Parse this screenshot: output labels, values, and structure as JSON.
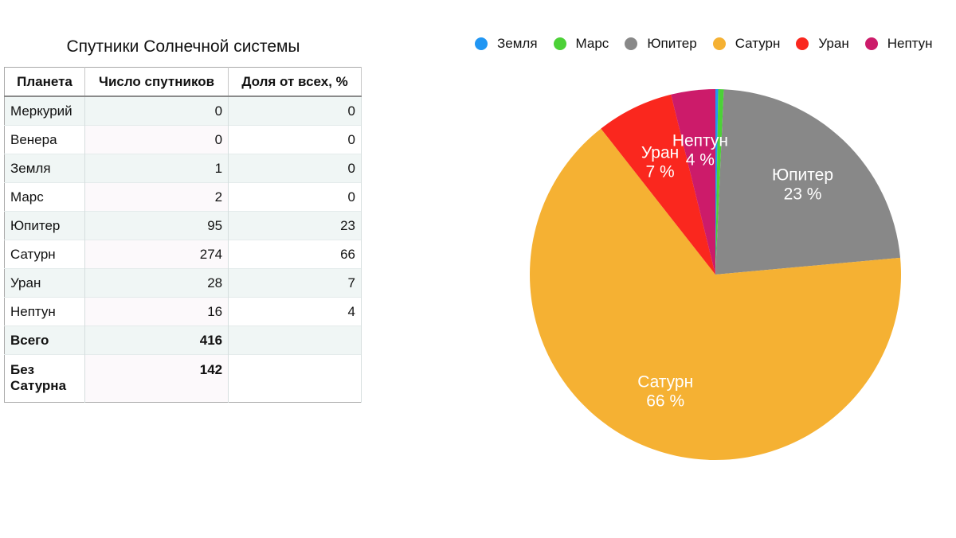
{
  "table": {
    "title": "Спутники Солнечной системы",
    "headers": [
      "Планета",
      "Число спутников",
      "Доля от всех, %"
    ],
    "rows": [
      {
        "planet": "Меркурий",
        "moons": "0",
        "share": "0"
      },
      {
        "planet": "Венера",
        "moons": "0",
        "share": "0"
      },
      {
        "planet": "Земля",
        "moons": "1",
        "share": "0"
      },
      {
        "planet": "Марс",
        "moons": "2",
        "share": "0"
      },
      {
        "planet": "Юпитер",
        "moons": "95",
        "share": "23"
      },
      {
        "planet": "Сатурн",
        "moons": "274",
        "share": "66"
      },
      {
        "planet": "Уран",
        "moons": "28",
        "share": "7"
      },
      {
        "planet": "Нептун",
        "moons": "16",
        "share": "4"
      }
    ],
    "total": {
      "label": "Всего",
      "value": "416"
    },
    "without_saturn": {
      "label": "Без Сатурна",
      "value": "142"
    }
  },
  "chart_data": {
    "type": "pie",
    "title": "",
    "categories": [
      "Земля",
      "Марс",
      "Юпитер",
      "Сатурн",
      "Уран",
      "Нептун"
    ],
    "values": [
      1,
      2,
      95,
      274,
      28,
      16
    ],
    "percent_labels": [
      "",
      "",
      "23 %",
      "66 %",
      "7 %",
      "4 %"
    ],
    "colors": [
      "#2196f3",
      "#4cd137",
      "#888888",
      "#f5b133",
      "#fa271e",
      "#cc1b6a"
    ],
    "legend_position": "top"
  }
}
